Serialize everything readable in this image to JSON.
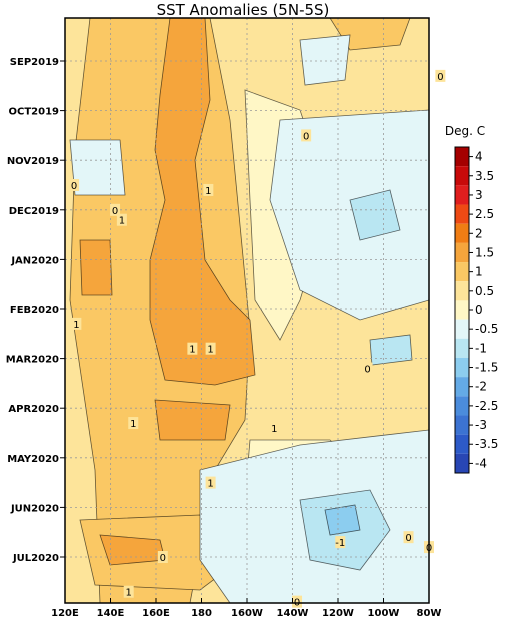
{
  "chart_data": {
    "type": "heatmap",
    "title": "SST Anomalies (5N-5S)",
    "colorbar_title": "Deg. C",
    "x_ticks": [
      "120E",
      "140E",
      "160E",
      "180",
      "160W",
      "140W",
      "120W",
      "100W",
      "80W"
    ],
    "y_ticks": [
      "SEP2019",
      "OCT2019",
      "NOV2019",
      "DEC2019",
      "JAN2020",
      "FEB2020",
      "MAR2020",
      "APR2020",
      "MAY2020",
      "JUN2020",
      "JUL2020"
    ],
    "x_range": [
      "120E",
      "80W"
    ],
    "y_range": [
      "AUG2019",
      "JUL2020"
    ],
    "grid": true,
    "levels": [
      {
        "label": "4",
        "color": "#a50000"
      },
      {
        "label": "3.5",
        "color": "#c80a0a"
      },
      {
        "label": "3",
        "color": "#e01e1e"
      },
      {
        "label": "2.5",
        "color": "#ee4a14"
      },
      {
        "label": "2",
        "color": "#f07d14"
      },
      {
        "label": "1.5",
        "color": "#f5a53c"
      },
      {
        "label": "1",
        "color": "#fac864"
      },
      {
        "label": "0.5",
        "color": "#fde49a"
      },
      {
        "label": "0",
        "color": "#fff7c6"
      },
      {
        "label": "-0.5",
        "color": "#e3f6f8"
      },
      {
        "label": "-1",
        "color": "#b9e6f2"
      },
      {
        "label": "-1.5",
        "color": "#8ccdef"
      },
      {
        "label": "-2",
        "color": "#64aae6"
      },
      {
        "label": "-2.5",
        "color": "#4b8cdc"
      },
      {
        "label": "-3",
        "color": "#3c73d2"
      },
      {
        "label": "-3.5",
        "color": "#2d5ac8"
      },
      {
        "label": "-4",
        "color": "#2846b4"
      }
    ],
    "contour_labels": [
      {
        "text": "0",
        "lon": 285,
        "month": 0.3
      },
      {
        "text": "0",
        "lon": 226,
        "month": 1.5
      },
      {
        "text": "1",
        "lon": 183,
        "month": 2.6
      },
      {
        "text": "0",
        "lon": 124,
        "month": 2.5
      },
      {
        "text": "0",
        "lon": 142,
        "month": 3.0
      },
      {
        "text": "1",
        "lon": 145,
        "month": 3.2
      },
      {
        "text": "1",
        "lon": 125,
        "month": 5.3
      },
      {
        "text": "1",
        "lon": 176,
        "month": 5.8
      },
      {
        "text": "1",
        "lon": 184,
        "month": 5.8
      },
      {
        "text": "0",
        "lon": 253,
        "month": 6.2
      },
      {
        "text": "1",
        "lon": 150,
        "month": 7.3
      },
      {
        "text": "1",
        "lon": 212,
        "month": 7.4
      },
      {
        "text": "1",
        "lon": 184,
        "month": 8.5
      },
      {
        "text": "0",
        "lon": 163,
        "month": 10.0
      },
      {
        "text": "-1",
        "lon": 241,
        "month": 9.7
      },
      {
        "text": "0",
        "lon": 271,
        "month": 9.6
      },
      {
        "text": "0",
        "lon": 280,
        "month": 9.8
      },
      {
        "text": "1",
        "lon": 148,
        "month": 10.7
      },
      {
        "text": "0",
        "lon": 222,
        "month": 10.9
      }
    ]
  }
}
